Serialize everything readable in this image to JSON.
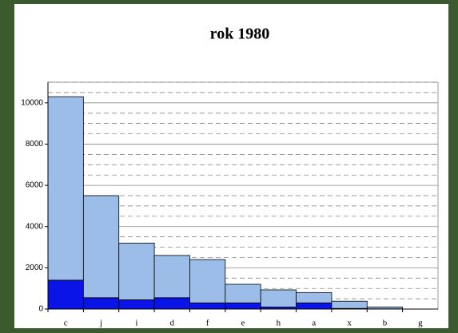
{
  "chart_data": {
    "type": "stacked_bar",
    "title": "rok 1980",
    "categories": [
      "c",
      "j",
      "i",
      "d",
      "f",
      "e",
      "h",
      "a",
      "x",
      "b",
      "g"
    ],
    "series": [
      {
        "color": "#0a14e6",
        "values": [
          1400,
          550,
          450,
          550,
          300,
          300,
          100,
          300,
          30,
          10,
          0
        ]
      },
      {
        "color": "#9cbde8",
        "values": [
          8900,
          4950,
          2750,
          2050,
          2100,
          900,
          830,
          500,
          350,
          90,
          0
        ]
      }
    ],
    "ylim": [
      0,
      11000
    ],
    "yticks": [
      0,
      2000,
      4000,
      6000,
      8000,
      10000
    ],
    "yminor": [
      500,
      1000,
      1500,
      2500,
      3000,
      3500,
      4500,
      5000,
      5500,
      6500,
      7000,
      7500,
      8500,
      9000,
      9500,
      10500,
      11000
    ],
    "grid": true
  }
}
